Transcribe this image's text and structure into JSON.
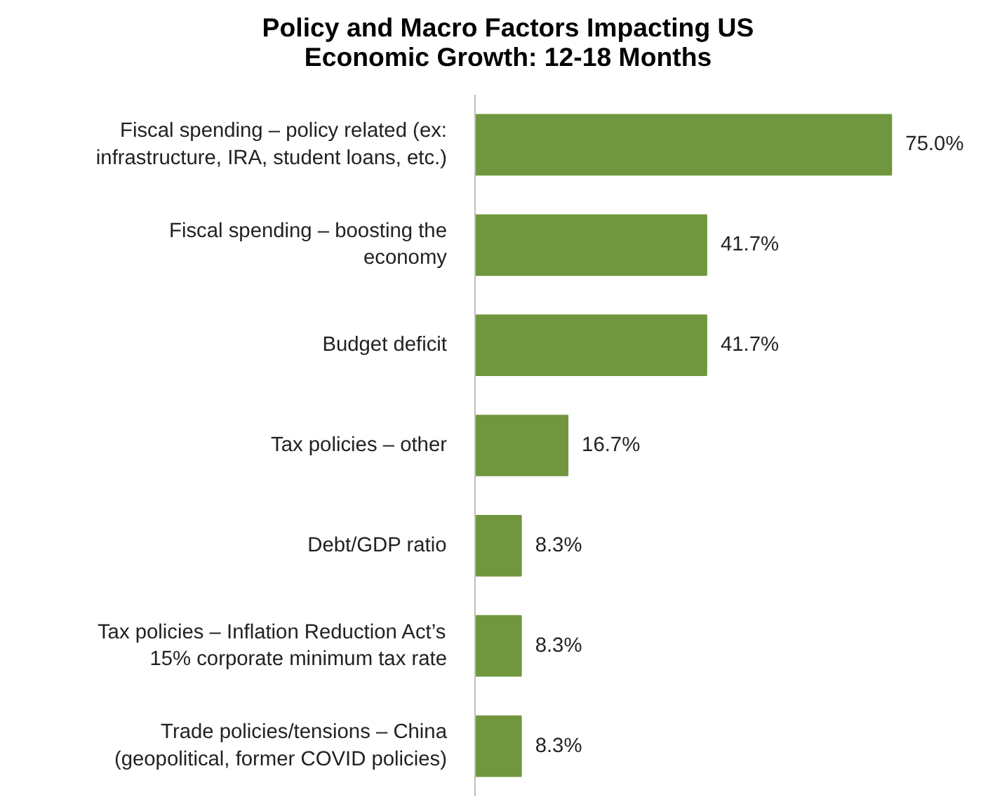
{
  "chart_data": {
    "type": "bar",
    "orientation": "horizontal",
    "title": "Policy and Macro Factors Impacting US Economic Growth: 12-18 Months",
    "categories": [
      "Fiscal spending – policy related (ex:\ninfrastructure, IRA, student loans, etc.)",
      "Fiscal spending – boosting the\neconomy",
      "Budget deficit",
      "Tax policies – other",
      "Debt/GDP ratio",
      "Tax policies – Inflation Reduction Act’s\n15% corporate minimum tax rate",
      "Trade policies/tensions – China\n(geopolitical, former COVID policies)"
    ],
    "values": [
      75.0,
      41.7,
      41.7,
      16.7,
      8.3,
      8.3,
      8.3
    ],
    "value_labels": [
      "75.0%",
      "41.7%",
      "41.7%",
      "16.7%",
      "8.3%",
      "8.3%",
      "8.3%"
    ],
    "color": "#70973f",
    "grid": false
  }
}
